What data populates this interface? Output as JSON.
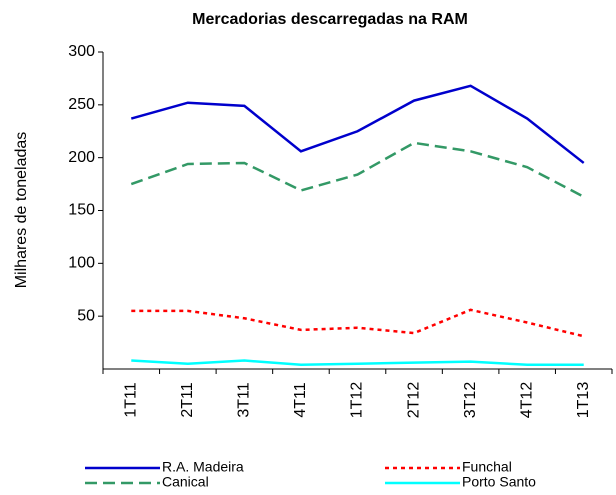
{
  "chart_data": {
    "type": "line",
    "title": "Mercadorias descarregadas na RAM",
    "y_label": "Milhares de toneladas",
    "categories": [
      "1T11",
      "2T11",
      "3T11",
      "4T11",
      "1T12",
      "2T12",
      "3T12",
      "4T12",
      "1T13"
    ],
    "ylim": [
      0,
      300
    ],
    "yticks": [
      50,
      100,
      150,
      200,
      250,
      300
    ],
    "series": [
      {
        "name": "R.A. Madeira",
        "color": "#0000cc",
        "dash": "solid",
        "values": [
          237,
          252,
          249,
          206,
          225,
          254,
          268,
          237,
          195
        ]
      },
      {
        "name": "Funchal",
        "color": "#ff0000",
        "dash": "dotted",
        "values": [
          55,
          55,
          48,
          37,
          39,
          34,
          56,
          44,
          31
        ]
      },
      {
        "name": "Canical",
        "color": "#339966",
        "dash": "dashed",
        "values": [
          175,
          194,
          195,
          169,
          184,
          214,
          206,
          191,
          163
        ]
      },
      {
        "name": "Porto Santo",
        "color": "#00ffff",
        "dash": "solid",
        "values": [
          8,
          5,
          8,
          4,
          5,
          6,
          7,
          4,
          4
        ]
      }
    ]
  }
}
